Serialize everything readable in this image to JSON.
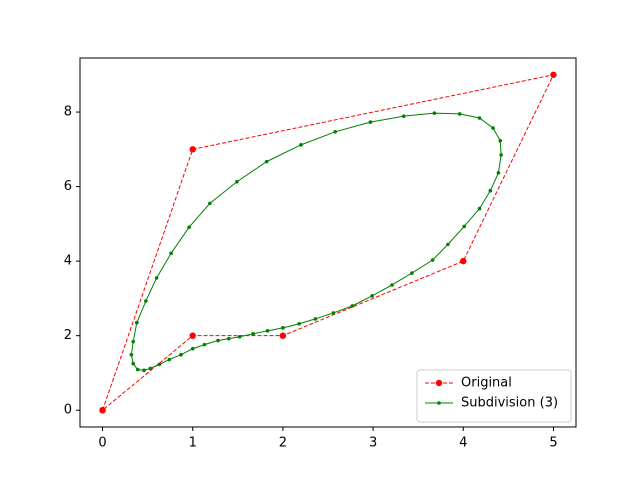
{
  "chart_data": {
    "type": "line",
    "xlim": [
      -0.25,
      5.25
    ],
    "ylim": [
      -0.45,
      9.45
    ],
    "xticks": [
      0,
      1,
      2,
      3,
      4,
      5
    ],
    "yticks": [
      0,
      2,
      4,
      6,
      8
    ],
    "legend": "lower right",
    "series": [
      {
        "name": "Original",
        "color": "#ff0000",
        "dashed": true,
        "marker_radius": 3.2,
        "x": [
          0,
          1,
          5,
          4,
          2,
          1,
          0
        ],
        "values": [
          0,
          7,
          9,
          4,
          2,
          2,
          0
        ]
      },
      {
        "name": "Subdivision (3)",
        "color": "#008000",
        "dashed": false,
        "marker_radius": 1.8,
        "x": [
          0.38,
          0.34,
          0.32,
          0.34,
          0.39,
          0.46,
          0.53,
          0.63,
          0.74,
          0.87,
          1.0,
          1.13,
          1.28,
          1.4,
          1.52,
          1.67,
          1.83,
          2.0,
          2.18,
          2.36,
          2.56,
          2.77,
          2.99,
          3.21,
          3.43,
          3.66,
          3.83,
          4.01,
          4.18,
          4.3,
          4.39,
          4.42,
          4.41,
          4.33,
          4.18,
          3.96,
          3.68,
          3.34,
          2.97,
          2.58,
          2.2,
          1.82,
          1.49,
          1.19,
          0.96,
          0.76,
          0.6,
          0.48,
          0.38
        ],
        "values": [
          2.35,
          1.84,
          1.49,
          1.25,
          1.09,
          1.07,
          1.12,
          1.23,
          1.36,
          1.49,
          1.65,
          1.76,
          1.87,
          1.92,
          1.97,
          2.05,
          2.13,
          2.21,
          2.32,
          2.45,
          2.61,
          2.8,
          3.07,
          3.36,
          3.68,
          4.03,
          4.45,
          4.93,
          5.41,
          5.89,
          6.37,
          6.85,
          7.23,
          7.57,
          7.84,
          7.95,
          7.97,
          7.89,
          7.73,
          7.47,
          7.12,
          6.67,
          6.13,
          5.55,
          4.91,
          4.21,
          3.55,
          2.93,
          2.35
        ]
      }
    ]
  }
}
